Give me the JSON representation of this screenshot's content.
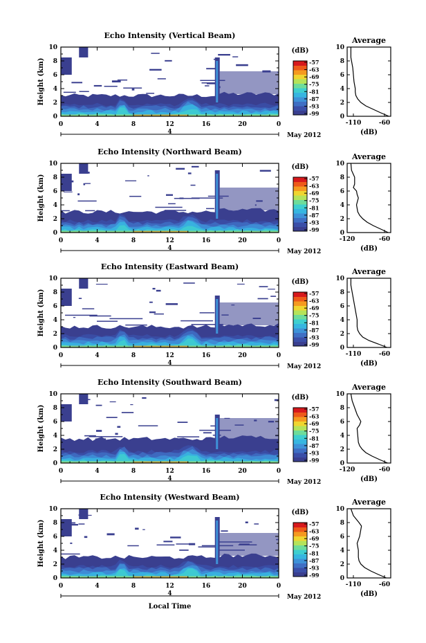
{
  "colors": {
    "background_echo": "#3a3f8f",
    "colormap": [
      "#3a3f8f",
      "#3b4fa8",
      "#3f6fc4",
      "#3e92d8",
      "#37b6e0",
      "#3fcfcf",
      "#6edc9a",
      "#b5e35a",
      "#f0d530",
      "#f59a20",
      "#ee5a1a",
      "#d7191c"
    ],
    "profile_line": "#000000",
    "axis": "#000000"
  },
  "shared": {
    "height_label": "Height (km)",
    "date_label": "May 2012",
    "xlabel": "Local Time",
    "day_label": "4",
    "avg_title": "Average",
    "avg_xlabel": "(dB)",
    "colorbar_unit": "(dB)",
    "colorbar_ticks": [
      "-57",
      "-63",
      "-69",
      "-75",
      "-81",
      "-87",
      "-93",
      "-99"
    ],
    "x_ticks": [
      "0",
      "4",
      "8",
      "12",
      "16",
      "20",
      "0"
    ],
    "y_ticks": [
      "0",
      "2",
      "4",
      "6",
      "8",
      "10"
    ]
  },
  "chart_data": [
    {
      "type": "heatmap",
      "title": "Echo Intensity (Vertical Beam)",
      "xlabel": "Local Time",
      "ylabel": "Height (km)",
      "xlim": [
        0,
        24
      ],
      "ylim": [
        0,
        10
      ],
      "colorbar_range": [
        -99,
        -57
      ],
      "layer_top_km": 3.0,
      "spike": {
        "time": 17.2,
        "top_km": 8.5
      },
      "average_profile": {
        "title": "Average",
        "xlabel": "(dB)",
        "xlim": [
          -120,
          -50
        ],
        "xticks": [
          "-110",
          "-60"
        ],
        "height_km": [
          0,
          0.5,
          1,
          1.5,
          2,
          2.5,
          3,
          3.5,
          4,
          5,
          6,
          7,
          7.5,
          8,
          8.5,
          9,
          10
        ],
        "dB": [
          -53,
          -66,
          -78,
          -90,
          -98,
          -103,
          -106,
          -107,
          -107,
          -109,
          -110,
          -111,
          -112,
          -113,
          -114,
          -114,
          -114
        ]
      }
    },
    {
      "type": "heatmap",
      "title": "Echo Intensity (Northward Beam)",
      "xlabel": "Local Time",
      "ylabel": "Height (km)",
      "xlim": [
        0,
        24
      ],
      "ylim": [
        0,
        10
      ],
      "colorbar_range": [
        -99,
        -57
      ],
      "layer_top_km": 3.0,
      "spike": {
        "time": 17.2,
        "top_km": 9.0
      },
      "average_profile": {
        "title": "Average",
        "xlabel": "(dB)",
        "xlim": [
          -120,
          -50
        ],
        "xticks": [
          "-120",
          "-60"
        ],
        "height_km": [
          0,
          0.5,
          1,
          1.5,
          2,
          2.5,
          3,
          4,
          5,
          5.5,
          6,
          6.5,
          7,
          8,
          9,
          10
        ],
        "dB": [
          -54,
          -66,
          -78,
          -88,
          -95,
          -100,
          -103,
          -105,
          -102,
          -104,
          -105,
          -110,
          -108,
          -108,
          -113,
          -114
        ]
      }
    },
    {
      "type": "heatmap",
      "title": "Echo Intensity (Eastward Beam)",
      "xlabel": "Local Time",
      "ylabel": "Height (km)",
      "xlim": [
        0,
        24
      ],
      "ylim": [
        0,
        10
      ],
      "colorbar_range": [
        -99,
        -57
      ],
      "layer_top_km": 3.0,
      "spike": {
        "time": 17.2,
        "top_km": 7.5
      },
      "average_profile": {
        "title": "Average",
        "xlabel": "(dB)",
        "xlim": [
          -120,
          -50
        ],
        "xticks": [
          "-110",
          "-60"
        ],
        "height_km": [
          0,
          0.5,
          1,
          1.5,
          2,
          2.5,
          3,
          4,
          5,
          6,
          7,
          8,
          9,
          10
        ],
        "dB": [
          -56,
          -70,
          -85,
          -95,
          -100,
          -103,
          -104,
          -104,
          -106,
          -108,
          -110,
          -112,
          -114,
          -114
        ]
      }
    },
    {
      "type": "heatmap",
      "title": "Echo Intensity (Southward Beam)",
      "xlabel": "Local Time",
      "ylabel": "Height (km)",
      "xlim": [
        0,
        24
      ],
      "ylim": [
        0,
        10
      ],
      "colorbar_range": [
        -99,
        -57
      ],
      "layer_top_km": 3.5,
      "spike": {
        "time": 17.2,
        "top_km": 7.0
      },
      "average_profile": {
        "title": "Average",
        "xlabel": "(dB)",
        "xlim": [
          -120,
          -50
        ],
        "xticks": [
          "-120",
          "-60"
        ],
        "height_km": [
          0,
          0.5,
          1,
          1.5,
          2,
          2.5,
          3,
          4,
          5,
          5.5,
          6,
          6.5,
          7,
          8,
          9,
          10
        ],
        "dB": [
          -55,
          -68,
          -80,
          -90,
          -96,
          -100,
          -102,
          -103,
          -104,
          -100,
          -98,
          -101,
          -104,
          -108,
          -112,
          -114
        ]
      }
    },
    {
      "type": "heatmap",
      "title": "Echo Intensity (Westward Beam)",
      "xlabel": "Local Time",
      "ylabel": "Height (km)",
      "xlim": [
        0,
        24
      ],
      "ylim": [
        0,
        10
      ],
      "colorbar_range": [
        -99,
        -57
      ],
      "layer_top_km": 3.0,
      "spike": {
        "time": 17.2,
        "top_km": 8.8
      },
      "average_profile": {
        "title": "Average",
        "xlabel": "(dB)",
        "xlim": [
          -120,
          -50
        ],
        "xticks": [
          "-110",
          "-60"
        ],
        "height_km": [
          0,
          0.5,
          1,
          1.5,
          2,
          2.5,
          3,
          4,
          5,
          6,
          7,
          7.5,
          8,
          9,
          10
        ],
        "dB": [
          -57,
          -70,
          -82,
          -92,
          -98,
          -101,
          -102,
          -102,
          -104,
          -100,
          -98,
          -97,
          -101,
          -110,
          -114
        ]
      }
    }
  ]
}
